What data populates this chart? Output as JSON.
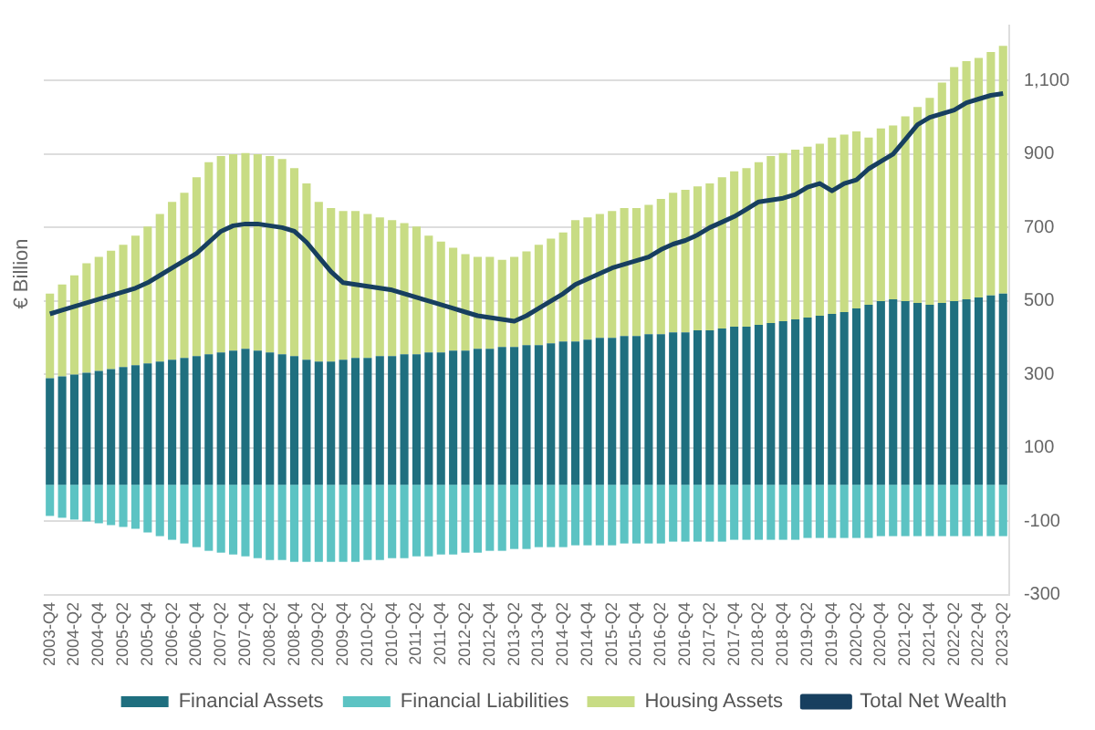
{
  "chart_data": {
    "type": "bar",
    "stacked": true,
    "ylabel": "€ Billion",
    "grid": "y",
    "legend": "bottom",
    "categories": [
      "2003-Q4",
      null,
      "2004-Q2",
      null,
      "2004-Q4",
      null,
      "2005-Q2",
      null,
      "2005-Q4",
      null,
      "2006-Q2",
      null,
      "2006-Q4",
      null,
      "2007-Q2",
      null,
      "2007-Q4",
      null,
      "2008-Q2",
      null,
      "2008-Q4",
      null,
      "2009-Q2",
      null,
      "2009-Q4",
      null,
      "2010-Q2",
      null,
      "2010-Q4",
      null,
      "2011-Q2",
      null,
      "2011-Q4",
      null,
      "2012-Q2",
      null,
      "2012-Q4",
      null,
      "2013-Q2",
      null,
      "2013-Q4",
      null,
      "2014-Q2",
      null,
      "2014-Q4",
      null,
      "2015-Q2",
      null,
      "2015-Q4",
      null,
      "2016-Q2",
      null,
      "2016-Q4",
      null,
      "2017-Q2",
      null,
      "2017-Q4",
      null,
      "2018-Q2",
      null,
      "2018-Q4",
      null,
      "2019-Q2",
      null,
      "2019-Q4",
      null,
      "2020-Q2",
      null,
      "2020-Q4",
      null,
      "2021-Q2",
      null,
      "2021-Q4",
      null,
      "2022-Q2",
      null,
      "2022-Q4",
      null,
      "2023-Q2"
    ],
    "ylim": [
      -300,
      1250
    ],
    "yticks": [
      -300,
      -100,
      100,
      300,
      500,
      700,
      900,
      {
        "value": 1100,
        "label": "1,100"
      }
    ],
    "series": [
      {
        "name": "Financial Assets",
        "color": "#1f6f7f",
        "values": [
          290,
          295,
          300,
          305,
          310,
          315,
          320,
          325,
          330,
          335,
          340,
          345,
          350,
          355,
          360,
          365,
          370,
          365,
          360,
          355,
          350,
          340,
          335,
          335,
          340,
          345,
          345,
          350,
          350,
          355,
          355,
          360,
          360,
          365,
          365,
          370,
          370,
          375,
          375,
          380,
          380,
          385,
          390,
          390,
          395,
          400,
          400,
          405,
          405,
          410,
          410,
          415,
          415,
          420,
          420,
          425,
          430,
          430,
          435,
          440,
          445,
          450,
          455,
          460,
          465,
          470,
          480,
          490,
          500,
          505,
          500,
          495,
          490,
          495,
          500,
          505,
          510,
          515,
          520
        ]
      },
      {
        "name": "Financial Liabilities",
        "color": "#5cc3c3",
        "values": [
          -85,
          -90,
          -95,
          -100,
          -105,
          -110,
          -115,
          -120,
          -130,
          -140,
          -150,
          -160,
          -170,
          -180,
          -185,
          -190,
          -195,
          -200,
          -205,
          -205,
          -210,
          -210,
          -210,
          -210,
          -210,
          -210,
          -205,
          -205,
          -200,
          -200,
          -195,
          -195,
          -190,
          -190,
          -185,
          -185,
          -180,
          -180,
          -175,
          -175,
          -170,
          -170,
          -170,
          -165,
          -165,
          -165,
          -165,
          -160,
          -160,
          -160,
          -160,
          -155,
          -155,
          -155,
          -155,
          -155,
          -150,
          -150,
          -150,
          -150,
          -150,
          -150,
          -145,
          -145,
          -145,
          -145,
          -145,
          -145,
          -140,
          -140,
          -140,
          -140,
          -140,
          -140,
          -140,
          -140,
          -140,
          -140,
          -140
        ]
      },
      {
        "name": "Housing Assets",
        "color": "#c8dc84",
        "values": [
          230,
          250,
          270,
          298,
          310,
          322,
          333,
          353,
          373,
          402,
          430,
          450,
          487,
          523,
          535,
          535,
          533,
          535,
          535,
          532,
          512,
          480,
          435,
          418,
          405,
          400,
          392,
          378,
          370,
          357,
          348,
          318,
          302,
          280,
          263,
          250,
          250,
          237,
          245,
          255,
          273,
          285,
          297,
          330,
          333,
          337,
          345,
          348,
          348,
          352,
          368,
          380,
          388,
          392,
          400,
          412,
          423,
          432,
          443,
          455,
          458,
          462,
          465,
          468,
          480,
          483,
          482,
          455,
          470,
          473,
          503,
          533,
          563,
          600,
          637,
          648,
          652,
          663,
          675
        ]
      },
      {
        "name": "Total Net Wealth",
        "type": "line",
        "color": "#173f5f",
        "values": [
          465,
          475,
          485,
          495,
          505,
          515,
          525,
          535,
          550,
          570,
          590,
          610,
          630,
          660,
          690,
          705,
          710,
          710,
          705,
          700,
          690,
          660,
          620,
          580,
          550,
          545,
          540,
          535,
          530,
          520,
          510,
          500,
          490,
          480,
          470,
          460,
          455,
          450,
          445,
          460,
          480,
          500,
          520,
          545,
          560,
          575,
          590,
          600,
          610,
          620,
          640,
          655,
          665,
          680,
          700,
          715,
          730,
          750,
          770,
          775,
          780,
          790,
          810,
          820,
          800,
          820,
          830,
          860,
          880,
          900,
          940,
          980,
          1000,
          1010,
          1020,
          1040,
          1050,
          1060,
          1065
        ]
      }
    ]
  }
}
